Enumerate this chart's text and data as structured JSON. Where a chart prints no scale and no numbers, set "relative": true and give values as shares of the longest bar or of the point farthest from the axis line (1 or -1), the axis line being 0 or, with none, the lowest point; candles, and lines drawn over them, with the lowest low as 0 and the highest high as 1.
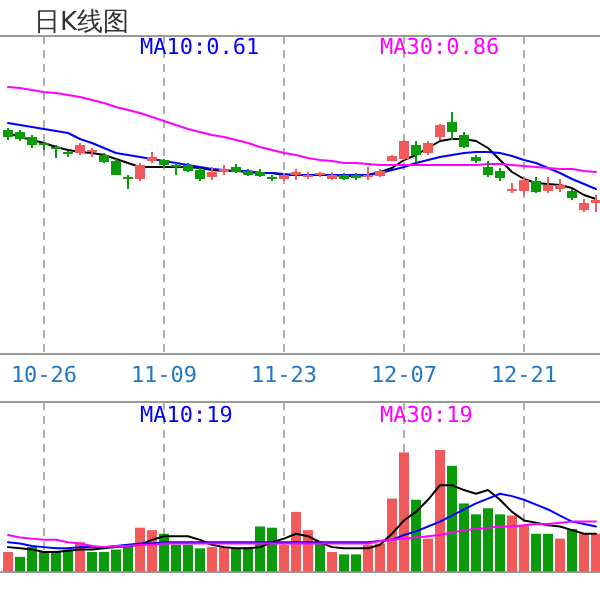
{
  "chart_data": [
    {
      "type": "candlestick",
      "title": "日K线图",
      "relative": true,
      "grid": "x",
      "categories": [
        null,
        null,
        null,
        "10-26",
        null,
        null,
        null,
        null,
        null,
        null,
        null,
        null,
        null,
        "11-09",
        null,
        null,
        null,
        null,
        null,
        null,
        null,
        null,
        null,
        "11-23",
        null,
        null,
        null,
        null,
        null,
        null,
        null,
        null,
        null,
        "12-07",
        null,
        null,
        null,
        null,
        null,
        null,
        null,
        null,
        null,
        "12-21",
        null,
        null,
        null,
        null,
        null,
        null
      ],
      "ohlc": [
        [
          0.82,
          0.84,
          0.72,
          0.75
        ],
        [
          0.8,
          0.82,
          0.71,
          0.73
        ],
        [
          0.75,
          0.77,
          0.64,
          0.67
        ],
        [
          0.69,
          0.7,
          0.62,
          0.67
        ],
        [
          0.65,
          0.67,
          0.54,
          0.64
        ],
        [
          0.6,
          0.61,
          0.55,
          0.59
        ],
        [
          0.59,
          0.69,
          0.57,
          0.67
        ],
        [
          0.6,
          0.64,
          0.55,
          0.62
        ],
        [
          0.57,
          0.59,
          0.49,
          0.5
        ],
        [
          0.51,
          0.53,
          0.37,
          0.37
        ],
        [
          0.35,
          0.37,
          0.23,
          0.34
        ],
        [
          0.33,
          0.49,
          0.31,
          0.47
        ],
        [
          0.51,
          0.6,
          0.49,
          0.55
        ],
        [
          0.52,
          0.53,
          0.44,
          0.47
        ],
        [
          0.47,
          0.49,
          0.37,
          0.45
        ],
        [
          0.47,
          0.49,
          0.4,
          0.41
        ],
        [
          0.42,
          0.44,
          0.31,
          0.33
        ],
        [
          0.35,
          0.45,
          0.32,
          0.4
        ],
        [
          0.4,
          0.47,
          0.37,
          0.43
        ],
        [
          0.45,
          0.48,
          0.39,
          0.4
        ],
        [
          0.41,
          0.43,
          0.36,
          0.37
        ],
        [
          0.4,
          0.43,
          0.35,
          0.36
        ],
        [
          0.35,
          0.37,
          0.31,
          0.34
        ],
        [
          0.33,
          0.39,
          0.31,
          0.37
        ],
        [
          0.37,
          0.43,
          0.32,
          0.4
        ],
        [
          0.35,
          0.4,
          0.33,
          0.37
        ],
        [
          0.37,
          0.4,
          0.35,
          0.39
        ],
        [
          0.33,
          0.4,
          0.32,
          0.37
        ],
        [
          0.37,
          0.39,
          0.32,
          0.33
        ],
        [
          0.37,
          0.39,
          0.32,
          0.34
        ],
        [
          0.36,
          0.45,
          0.32,
          0.37
        ],
        [
          0.36,
          0.43,
          0.35,
          0.41
        ],
        [
          0.51,
          0.57,
          0.51,
          0.56
        ],
        [
          0.53,
          0.72,
          0.52,
          0.71
        ],
        [
          0.67,
          0.71,
          0.49,
          0.57
        ],
        [
          0.59,
          0.71,
          0.57,
          0.69
        ],
        [
          0.75,
          0.88,
          0.72,
          0.87
        ],
        [
          0.9,
          1,
          0.72,
          0.8
        ],
        [
          0.77,
          0.8,
          0.64,
          0.65
        ],
        [
          0.55,
          0.57,
          0.49,
          0.51
        ],
        [
          0.45,
          0.51,
          0.35,
          0.37
        ],
        [
          0.41,
          0.44,
          0.31,
          0.34
        ],
        [
          0.21,
          0.29,
          0.19,
          0.23
        ],
        [
          0.21,
          0.35,
          0.17,
          0.32
        ],
        [
          0.31,
          0.35,
          0.19,
          0.2
        ],
        [
          0.21,
          0.35,
          0.19,
          0.27
        ],
        [
          0.23,
          0.33,
          0.2,
          0.27
        ],
        [
          0.21,
          0.23,
          0.12,
          0.14
        ],
        [
          0.02,
          0.13,
          0,
          0.09
        ],
        [
          0.09,
          0.17,
          0,
          0.12
        ]
      ],
      "colors": [
        "#0a9a0a",
        "#0a9a0a",
        "#0a9a0a",
        "#0a9a0a",
        "#0a9a0a",
        "#0a9a0a",
        "#f05a5a",
        "#f05a5a",
        "#0a9a0a",
        "#0a9a0a",
        "#0a9a0a",
        "#f05a5a",
        "#f05a5a",
        "#0a9a0a",
        "#0a9a0a",
        "#0a9a0a",
        "#0a9a0a",
        "#f05a5a",
        "#f05a5a",
        "#0a9a0a",
        "#0a9a0a",
        "#0a9a0a",
        "#0a9a0a",
        "#f05a5a",
        "#f05a5a",
        "#f05a5a",
        "#f05a5a",
        "#f05a5a",
        "#0a9a0a",
        "#0a9a0a",
        "#f05a5a",
        "#f05a5a",
        "#f05a5a",
        "#f05a5a",
        "#0a9a0a",
        "#f05a5a",
        "#f05a5a",
        "#0a9a0a",
        "#0a9a0a",
        "#0a9a0a",
        "#0a9a0a",
        "#0a9a0a",
        "#f05a5a",
        "#f05a5a",
        "#0a9a0a",
        "#f05a5a",
        "#f05a5a",
        "#0a9a0a",
        "#f05a5a",
        "#f05a5a"
      ],
      "series": [
        {
          "type": "line",
          "color": "#000000",
          "values": [
            0.79,
            0.75,
            0.72,
            0.69,
            0.65,
            0.62,
            0.6,
            0.59,
            0.57,
            0.53,
            0.49,
            0.45,
            0.45,
            0.45,
            0.45,
            0.45,
            0.44,
            0.42,
            0.41,
            0.41,
            0.4,
            0.39,
            0.39,
            0.37,
            0.37,
            0.37,
            0.37,
            0.37,
            0.36,
            0.36,
            0.37,
            0.4,
            0.44,
            0.52,
            0.57,
            0.64,
            0.71,
            0.73,
            0.73,
            0.71,
            0.64,
            0.52,
            0.4,
            0.33,
            0.29,
            0.28,
            0.27,
            0.24,
            0.17,
            0.13
          ]
        },
        {
          "type": "line",
          "color": "#0000ff",
          "values": [
            0.89,
            0.87,
            0.85,
            0.83,
            0.81,
            0.79,
            0.73,
            0.69,
            0.64,
            0.59,
            0.57,
            0.55,
            0.53,
            0.51,
            0.49,
            0.47,
            0.45,
            0.43,
            0.42,
            0.41,
            0.41,
            0.39,
            0.39,
            0.38,
            0.37,
            0.37,
            0.37,
            0.37,
            0.37,
            0.37,
            0.37,
            0.39,
            0.42,
            0.45,
            0.49,
            0.52,
            0.55,
            0.57,
            0.59,
            0.6,
            0.6,
            0.59,
            0.56,
            0.52,
            0.49,
            0.44,
            0.39,
            0.33,
            0.28,
            0.23
          ]
        },
        {
          "type": "line",
          "color": "#ff00ff",
          "values": [
            1.25,
            1.24,
            1.22,
            1.2,
            1.19,
            1.17,
            1.15,
            1.12,
            1.09,
            1.05,
            1.02,
            0.99,
            0.95,
            0.91,
            0.87,
            0.83,
            0.8,
            0.77,
            0.75,
            0.72,
            0.69,
            0.65,
            0.62,
            0.59,
            0.57,
            0.54,
            0.52,
            0.51,
            0.49,
            0.49,
            0.48,
            0.47,
            0.47,
            0.47,
            0.47,
            0.47,
            0.47,
            0.47,
            0.47,
            0.47,
            0.48,
            0.48,
            0.47,
            0.46,
            0.45,
            0.44,
            0.43,
            0.43,
            0.41,
            0.4
          ]
        }
      ],
      "annotations": [
        "MA10:0.61",
        "MA30:0.86"
      ]
    },
    {
      "type": "bar",
      "relative": true,
      "grid": "x",
      "tick_labels": false,
      "categories": [
        null,
        null,
        null,
        null,
        null,
        null,
        null,
        null,
        null,
        null,
        null,
        null,
        null,
        null,
        null,
        null,
        null,
        null,
        null,
        null,
        null,
        null,
        null,
        null,
        null,
        null,
        null,
        null,
        null,
        null,
        null,
        null,
        null,
        null,
        null,
        null,
        null,
        null,
        null,
        null,
        null,
        null,
        null,
        null,
        null,
        null,
        null,
        null,
        null,
        null
      ],
      "series": [
        {
          "type": "bar",
          "values": [
            0.16,
            0.12,
            0.2,
            0.16,
            0.16,
            0.18,
            0.24,
            0.16,
            0.16,
            0.18,
            0.22,
            0.36,
            0.34,
            0.31,
            0.22,
            0.22,
            0.19,
            0.2,
            0.2,
            0.19,
            0.2,
            0.37,
            0.36,
            0.22,
            0.49,
            0.34,
            0.23,
            0.16,
            0.14,
            0.14,
            0.22,
            0.23,
            0.6,
            0.98,
            0.59,
            0.27,
            1,
            0.87,
            0.56,
            0.47,
            0.52,
            0.47,
            0.46,
            0.38,
            0.31,
            0.31,
            0.27,
            0.35,
            0.31,
            0.31
          ],
          "colors": [
            "#f05a5a",
            "#0a9a0a",
            "#0a9a0a",
            "#0a9a0a",
            "#0a9a0a",
            "#0a9a0a",
            "#f05a5a",
            "#0a9a0a",
            "#0a9a0a",
            "#0a9a0a",
            "#0a9a0a",
            "#f05a5a",
            "#f05a5a",
            "#0a9a0a",
            "#0a9a0a",
            "#0a9a0a",
            "#0a9a0a",
            "#f05a5a",
            "#f05a5a",
            "#0a9a0a",
            "#0a9a0a",
            "#0a9a0a",
            "#0a9a0a",
            "#f05a5a",
            "#f05a5a",
            "#f05a5a",
            "#0a9a0a",
            "#f05a5a",
            "#0a9a0a",
            "#0a9a0a",
            "#f05a5a",
            "#f05a5a",
            "#f05a5a",
            "#f05a5a",
            "#0a9a0a",
            "#f05a5a",
            "#f05a5a",
            "#0a9a0a",
            "#0a9a0a",
            "#0a9a0a",
            "#0a9a0a",
            "#0a9a0a",
            "#f05a5a",
            "#f05a5a",
            "#0a9a0a",
            "#0a9a0a",
            "#f05a5a",
            "#0a9a0a",
            "#f05a5a",
            "#f05a5a"
          ]
        },
        {
          "type": "line",
          "color": "#000000",
          "values": [
            0.2,
            0.19,
            0.18,
            0.16,
            0.16,
            0.17,
            0.18,
            0.18,
            0.19,
            0.2,
            0.21,
            0.22,
            0.26,
            0.29,
            0.29,
            0.29,
            0.26,
            0.22,
            0.2,
            0.19,
            0.19,
            0.2,
            0.24,
            0.27,
            0.31,
            0.29,
            0.24,
            0.2,
            0.19,
            0.19,
            0.19,
            0.22,
            0.31,
            0.42,
            0.49,
            0.59,
            0.71,
            0.71,
            0.67,
            0.64,
            0.67,
            0.59,
            0.49,
            0.42,
            0.4,
            0.38,
            0.37,
            0.34,
            0.31,
            0.31
          ]
        },
        {
          "type": "line",
          "color": "#0000ff",
          "values": [
            0.24,
            0.23,
            0.21,
            0.2,
            0.19,
            0.19,
            0.2,
            0.2,
            0.2,
            0.21,
            0.22,
            0.23,
            0.23,
            0.24,
            0.24,
            0.24,
            0.24,
            0.24,
            0.24,
            0.24,
            0.24,
            0.24,
            0.24,
            0.24,
            0.24,
            0.24,
            0.24,
            0.24,
            0.24,
            0.24,
            0.24,
            0.25,
            0.26,
            0.3,
            0.33,
            0.37,
            0.41,
            0.46,
            0.51,
            0.56,
            0.6,
            0.64,
            0.62,
            0.59,
            0.55,
            0.51,
            0.46,
            0.41,
            0.39,
            0.37
          ]
        },
        {
          "type": "line",
          "color": "#ff00ff",
          "values": [
            0.3,
            0.28,
            0.27,
            0.26,
            0.26,
            0.24,
            0.23,
            0.21,
            0.2,
            0.21,
            0.21,
            0.22,
            0.22,
            0.23,
            0.23,
            0.23,
            0.23,
            0.23,
            0.23,
            0.23,
            0.23,
            0.23,
            0.23,
            0.23,
            0.23,
            0.23,
            0.23,
            0.23,
            0.23,
            0.23,
            0.23,
            0.25,
            0.26,
            0.27,
            0.28,
            0.29,
            0.3,
            0.32,
            0.34,
            0.35,
            0.36,
            0.37,
            0.37,
            0.38,
            0.39,
            0.39,
            0.4,
            0.41,
            0.41,
            0.41
          ]
        }
      ],
      "annotations": [
        "MA10:19",
        "MA30:19"
      ]
    }
  ]
}
